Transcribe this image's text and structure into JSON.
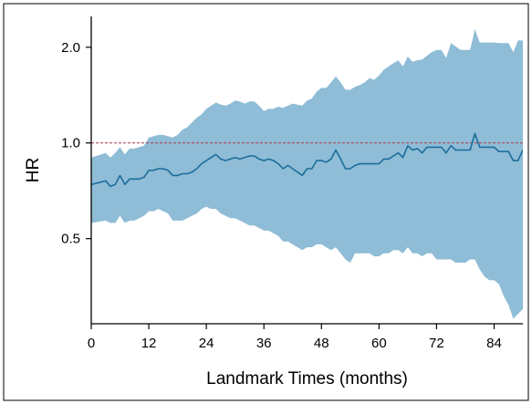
{
  "chart_data": {
    "type": "area",
    "title": "",
    "xlabel": "Landmark Times (months)",
    "ylabel": "HR",
    "xlim": [
      0,
      90
    ],
    "ylim": [
      0.27,
      2.5
    ],
    "y_scale": "log",
    "x_ticks": [
      0,
      12,
      24,
      36,
      48,
      60,
      72,
      84
    ],
    "y_ticks": [
      {
        "value": 0.5,
        "label": "0.5"
      },
      {
        "value": 1.0,
        "label": "1.0"
      },
      {
        "value": 2.0,
        "label": "2.0"
      }
    ],
    "reference_line": {
      "y": 1.0,
      "color": "#b2384a",
      "style": "dashed"
    },
    "grid": false,
    "legend": "none",
    "colors": {
      "line": "#1b6e9c",
      "band": "#8fbcd6",
      "reference": "#b2384a"
    },
    "x": [
      0,
      3,
      4,
      5,
      6,
      7,
      8,
      9,
      10,
      11,
      12,
      13,
      14,
      15,
      16,
      17,
      18,
      19,
      20,
      21,
      22,
      23,
      24,
      25,
      26,
      27,
      28,
      29,
      30,
      31,
      32,
      33,
      34,
      35,
      36,
      37,
      38,
      39,
      40,
      41,
      42,
      43,
      44,
      45,
      46,
      47,
      48,
      49,
      50,
      51,
      52,
      53,
      54,
      55,
      56,
      57,
      58,
      59,
      60,
      61,
      62,
      63,
      64,
      65,
      66,
      67,
      68,
      69,
      70,
      71,
      72,
      73,
      74,
      75,
      76,
      77,
      78,
      79,
      80,
      81,
      82,
      83,
      84,
      85,
      86,
      87,
      88,
      89,
      90
    ],
    "series": [
      {
        "values": [
          0.74,
          0.76,
          0.73,
          0.74,
          0.79,
          0.74,
          0.77,
          0.77,
          0.77,
          0.78,
          0.82,
          0.82,
          0.83,
          0.83,
          0.82,
          0.79,
          0.79,
          0.8,
          0.8,
          0.81,
          0.83,
          0.86,
          0.88,
          0.9,
          0.92,
          0.89,
          0.88,
          0.89,
          0.9,
          0.89,
          0.9,
          0.91,
          0.91,
          0.89,
          0.88,
          0.89,
          0.88,
          0.86,
          0.83,
          0.85,
          0.83,
          0.81,
          0.79,
          0.83,
          0.83,
          0.88,
          0.88,
          0.87,
          0.89,
          0.95,
          0.89,
          0.83,
          0.83,
          0.85,
          0.86,
          0.86,
          0.86,
          0.86,
          0.86,
          0.89,
          0.89,
          0.91,
          0.93,
          0.9,
          0.98,
          0.95,
          0.96,
          0.93,
          0.97,
          0.97,
          0.97,
          0.97,
          0.93,
          0.98,
          0.95,
          0.95,
          0.95,
          0.95,
          1.07,
          0.97,
          0.97,
          0.97,
          0.97,
          0.94,
          0.94,
          0.94,
          0.88,
          0.88,
          0.95
        ],
        "lower": [
          0.56,
          0.57,
          0.56,
          0.56,
          0.59,
          0.56,
          0.57,
          0.57,
          0.58,
          0.59,
          0.61,
          0.61,
          0.62,
          0.61,
          0.6,
          0.57,
          0.57,
          0.57,
          0.58,
          0.59,
          0.6,
          0.62,
          0.63,
          0.62,
          0.62,
          0.6,
          0.59,
          0.58,
          0.58,
          0.57,
          0.56,
          0.55,
          0.55,
          0.54,
          0.53,
          0.53,
          0.52,
          0.51,
          0.49,
          0.49,
          0.48,
          0.47,
          0.46,
          0.47,
          0.47,
          0.48,
          0.48,
          0.47,
          0.46,
          0.47,
          0.45,
          0.43,
          0.42,
          0.45,
          0.45,
          0.45,
          0.45,
          0.44,
          0.44,
          0.45,
          0.45,
          0.46,
          0.46,
          0.45,
          0.47,
          0.45,
          0.45,
          0.44,
          0.45,
          0.45,
          0.43,
          0.43,
          0.43,
          0.43,
          0.42,
          0.42,
          0.42,
          0.43,
          0.43,
          0.4,
          0.38,
          0.37,
          0.37,
          0.36,
          0.33,
          0.31,
          0.28,
          0.29,
          0.3
        ],
        "upper": [
          0.9,
          0.93,
          0.9,
          0.93,
          0.97,
          0.92,
          0.96,
          0.96,
          0.97,
          0.98,
          1.04,
          1.05,
          1.06,
          1.06,
          1.05,
          1.04,
          1.06,
          1.1,
          1.12,
          1.16,
          1.2,
          1.23,
          1.28,
          1.31,
          1.34,
          1.32,
          1.31,
          1.33,
          1.36,
          1.35,
          1.33,
          1.35,
          1.35,
          1.31,
          1.26,
          1.28,
          1.28,
          1.3,
          1.29,
          1.31,
          1.33,
          1.32,
          1.31,
          1.36,
          1.38,
          1.45,
          1.49,
          1.49,
          1.55,
          1.62,
          1.55,
          1.47,
          1.47,
          1.5,
          1.52,
          1.55,
          1.6,
          1.58,
          1.63,
          1.7,
          1.74,
          1.78,
          1.82,
          1.74,
          1.87,
          1.8,
          1.82,
          1.83,
          1.88,
          1.93,
          1.96,
          1.96,
          1.85,
          2.06,
          2.01,
          1.96,
          1.96,
          1.96,
          2.28,
          2.07,
          2.07,
          2.07,
          2.07,
          2.06,
          2.06,
          2.06,
          1.93,
          2.1,
          2.1
        ]
      }
    ]
  }
}
